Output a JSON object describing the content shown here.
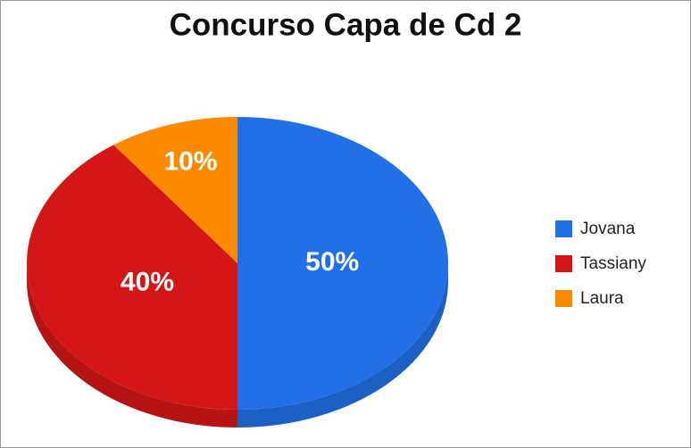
{
  "chart_data": {
    "type": "pie3d",
    "title": "Concurso Capa de Cd 2",
    "categories": [
      "Jovana",
      "Tassiany",
      "Laura"
    ],
    "values": [
      50,
      40,
      10
    ],
    "value_labels": [
      "50%",
      "40%",
      "10%"
    ],
    "colors": [
      "#2170e8",
      "#d51617",
      "#fb8a00"
    ],
    "legend": "right"
  }
}
